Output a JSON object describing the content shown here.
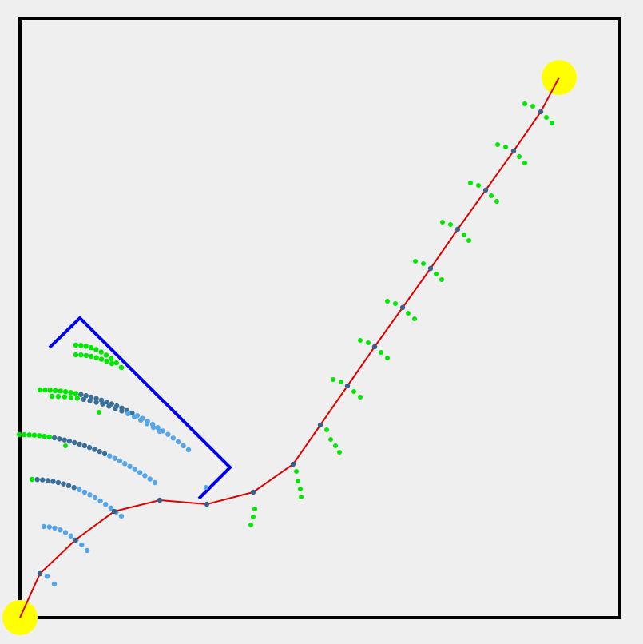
{
  "scene": {
    "colors": {
      "background": "#efefef",
      "frame": "#000000",
      "path": "#e00000",
      "waypoint": "#3a5f8a",
      "obstacle": "#0000ee",
      "samples_green": "#00e800",
      "samples_dark": "#3a6f9a",
      "samples_light": "#55a5e8",
      "goal": "#ffff00",
      "start": "#ffff00"
    },
    "start_marker": "start-circle",
    "goal_marker": "goal-circle"
  }
}
